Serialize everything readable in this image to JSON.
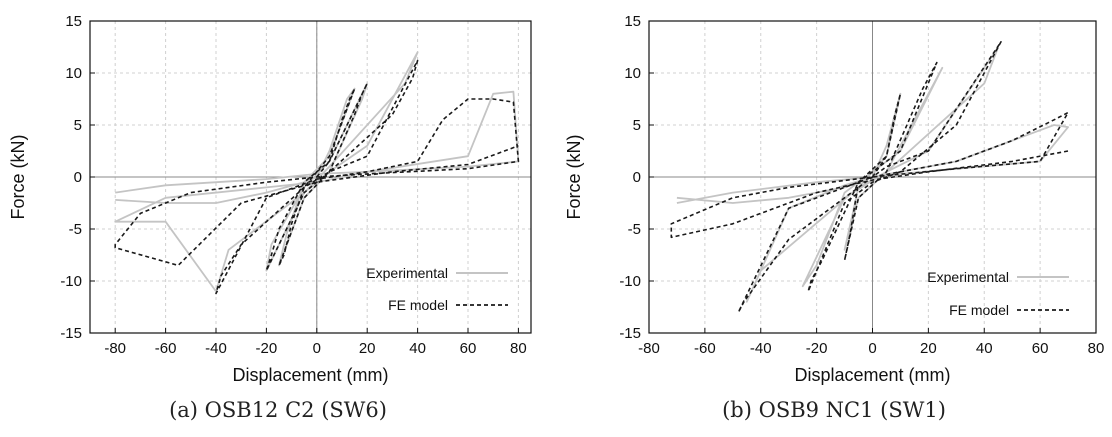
{
  "colors": {
    "experimental": "#c4c4c4",
    "fe_model": "#1a1a1a",
    "grid": "#d0d0d0"
  },
  "chart_data": [
    {
      "type": "line",
      "caption": "(a) OSB12 C2 (SW6)",
      "xlabel": "Displacement (mm)",
      "ylabel": "Force (kN)",
      "xlim": [
        -90,
        85
      ],
      "ylim": [
        -15,
        15
      ],
      "xticks": [
        -80,
        -60,
        -40,
        -20,
        0,
        20,
        40,
        60,
        80
      ],
      "yticks": [
        -15,
        -10,
        -5,
        0,
        5,
        10,
        15
      ],
      "grid": true,
      "legend_position": "bottom-right",
      "series": [
        {
          "name": "Experimental",
          "style": "solid",
          "x": [
            -80,
            -60,
            -40,
            -20,
            -5,
            0,
            5,
            12,
            15,
            5,
            -5,
            -12,
            -15,
            -5,
            5,
            18,
            20,
            5,
            -5,
            -18,
            -20,
            -5,
            5,
            35,
            40,
            20,
            5,
            -5,
            -35,
            -40,
            -60,
            -80,
            -60,
            -20,
            0,
            20,
            60,
            70,
            78,
            80,
            60,
            20,
            0,
            -20,
            -60,
            -80
          ],
          "y": [
            -2.2,
            -2.5,
            -2.5,
            -1.5,
            -0.5,
            0,
            2.5,
            7.5,
            8.5,
            2.0,
            -0.5,
            -5.5,
            -8.5,
            -2.0,
            0.5,
            7.5,
            9.0,
            1.5,
            -1.0,
            -6.5,
            -9.0,
            -1.5,
            1.0,
            9.0,
            12.0,
            3.0,
            0.5,
            -1.5,
            -7.0,
            -11.0,
            -4.3,
            -4.3,
            -2.0,
            -1.0,
            -0.5,
            0.5,
            2.0,
            8.0,
            8.2,
            1.5,
            1.0,
            0.5,
            0.3,
            -0.2,
            -0.8,
            -1.5
          ]
        },
        {
          "name": "FE model",
          "style": "dashed",
          "x": [
            0,
            5,
            10,
            13,
            15,
            5,
            -5,
            -10,
            -13,
            -15,
            -5,
            5,
            15,
            18,
            20,
            5,
            -5,
            -15,
            -18,
            -20,
            -5,
            5,
            30,
            38,
            40,
            20,
            5,
            -5,
            -30,
            -38,
            -40,
            -20,
            0,
            20,
            40,
            50,
            60,
            70,
            78,
            80,
            60,
            20,
            0,
            -20,
            -50,
            -70,
            -80,
            -80,
            -55,
            -30,
            0,
            30,
            60,
            80
          ],
          "y": [
            0,
            1.5,
            5.5,
            7.5,
            8.5,
            2.0,
            -1.0,
            -4.5,
            -7.5,
            -8.5,
            -2.0,
            0.5,
            6.0,
            8.0,
            9.0,
            1.5,
            -0.5,
            -5.0,
            -7.5,
            -9.0,
            -1.5,
            0.5,
            6.0,
            9.5,
            11.2,
            2.0,
            0.5,
            -1.0,
            -6.5,
            -9.5,
            -11.2,
            -2.0,
            -0.2,
            0.5,
            1.5,
            5.5,
            7.5,
            7.5,
            7.2,
            1.5,
            0.8,
            0.3,
            0,
            -0.5,
            -1.5,
            -3.5,
            -6.5,
            -6.8,
            -8.5,
            -2.5,
            -0.5,
            0.5,
            1.2,
            3.0
          ]
        }
      ]
    },
    {
      "type": "line",
      "caption": "(b) OSB9 NC1 (SW1)",
      "xlabel": "Displacement (mm)",
      "ylabel": "Force (kN)",
      "xlim": [
        -80,
        80
      ],
      "ylim": [
        -15,
        15
      ],
      "xticks": [
        -80,
        -60,
        -40,
        -20,
        0,
        20,
        40,
        60,
        80
      ],
      "yticks": [
        -15,
        -10,
        -5,
        0,
        5,
        10,
        15
      ],
      "grid": true,
      "legend_position": "bottom-right",
      "series": [
        {
          "name": "Experimental",
          "style": "solid",
          "x": [
            -70,
            -50,
            -30,
            -10,
            0,
            5,
            10,
            5,
            -5,
            -10,
            -5,
            5,
            20,
            25,
            10,
            0,
            -10,
            -20,
            -25,
            -10,
            5,
            40,
            45,
            20,
            5,
            -5,
            -40,
            -45,
            -30,
            -10,
            0,
            10,
            30,
            50,
            65,
            70,
            60,
            30,
            10,
            0,
            -20,
            -50,
            -70
          ],
          "y": [
            -2.0,
            -2.5,
            -2.0,
            -1.0,
            0,
            3.0,
            8.0,
            2.0,
            -1.0,
            -7.0,
            -2.0,
            0.5,
            8.0,
            10.5,
            2.5,
            0.5,
            -1.5,
            -8.5,
            -10.5,
            -2.0,
            0.5,
            9.0,
            12.5,
            2.5,
            0.5,
            -1.0,
            -9.0,
            -12.0,
            -3.0,
            -0.8,
            0,
            0.5,
            1.5,
            3.5,
            5.0,
            4.8,
            1.5,
            0.8,
            0.3,
            0,
            -0.5,
            -1.5,
            -2.5
          ]
        },
        {
          "name": "FE model",
          "style": "dashed",
          "x": [
            0,
            5,
            8,
            10,
            5,
            -5,
            -8,
            -10,
            -5,
            5,
            18,
            22,
            23,
            10,
            0,
            -5,
            -18,
            -22,
            -23,
            -10,
            0,
            10,
            30,
            42,
            46,
            20,
            5,
            -5,
            -30,
            -42,
            -46,
            -48,
            -30,
            -10,
            0,
            10,
            30,
            50,
            65,
            70,
            60,
            30,
            0,
            -30,
            -50,
            -72,
            -72,
            -50,
            -20,
            0,
            20,
            50,
            70
          ],
          "y": [
            0,
            2.0,
            6.0,
            8.0,
            2.0,
            -0.5,
            -5.5,
            -8.0,
            -2.0,
            0.5,
            8.5,
            10.5,
            11.0,
            2.5,
            0.5,
            -0.5,
            -8.0,
            -10.0,
            -11.0,
            -2.5,
            -0.5,
            0.5,
            5.0,
            11.0,
            13.0,
            2.5,
            1.0,
            -1.0,
            -6.0,
            -10.5,
            -12.0,
            -13.0,
            -3.0,
            -1.0,
            0,
            0.5,
            1.5,
            3.5,
            5.5,
            6.2,
            1.5,
            0.8,
            0,
            -1.0,
            -2.0,
            -4.5,
            -5.8,
            -4.5,
            -1.5,
            -0.3,
            0.5,
            1.5,
            2.5
          ]
        }
      ]
    }
  ]
}
